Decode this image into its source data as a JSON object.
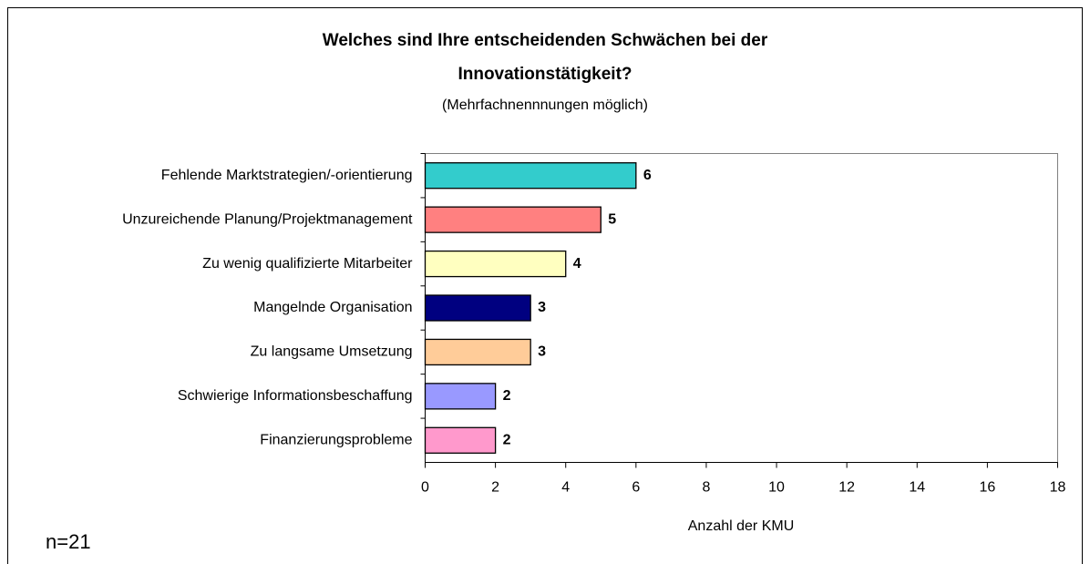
{
  "chart_data": {
    "type": "bar",
    "orientation": "horizontal",
    "title": [
      "Welches sind Ihre entscheidenden Schwächen bei der",
      "Innovationstätigkeit?"
    ],
    "subtitle": "(Mehrfachnennnungen möglich)",
    "xlabel": "Anzahl der KMU",
    "annotation": "n=21",
    "categories": [
      "Fehlende Marktstrategien/-orientierung",
      "Unzureichende Planung/Projektmanagement",
      "Zu wenig qualifizierte Mitarbeiter",
      "Mangelnde Organisation",
      "Zu langsame Umsetzung",
      "Schwierige Informationsbeschaffung",
      "Finanzierungsprobleme"
    ],
    "values": [
      6,
      5,
      4,
      3,
      3,
      2,
      2
    ],
    "colors": [
      "#33cccc",
      "#ff8080",
      "#ffffc0",
      "#000080",
      "#ffcc99",
      "#9999ff",
      "#ff99cc"
    ],
    "xlim": [
      0,
      18
    ],
    "xticks": [
      0,
      2,
      4,
      6,
      8,
      10,
      12,
      14,
      16,
      18
    ]
  }
}
